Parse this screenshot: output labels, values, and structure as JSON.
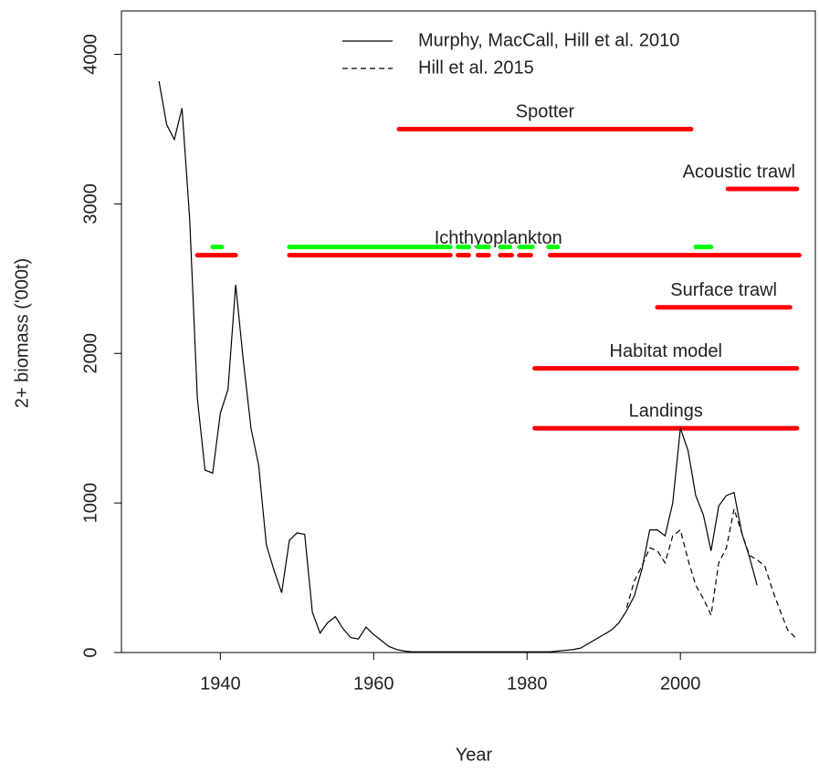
{
  "chart_data": {
    "type": "line",
    "xlabel": "Year",
    "ylabel": "2+ biomass ('000t)",
    "xlim": [
      1927.1,
      2017.6
    ],
    "ylim": [
      0,
      4290
    ],
    "xticks": [
      1940,
      1960,
      1980,
      2000
    ],
    "yticks": [
      0,
      1000,
      2000,
      3000,
      4000
    ],
    "legend": "top",
    "series": [
      {
        "name": "Murphy, MacCall, Hill et al. 2010",
        "color": "#000000",
        "dash": "none",
        "x": [
          1932,
          1933,
          1934,
          1935,
          1936,
          1937,
          1938,
          1939,
          1940,
          1941,
          1942,
          1943,
          1944,
          1945,
          1946,
          1947,
          1948,
          1949,
          1950,
          1951,
          1952,
          1953,
          1954,
          1955,
          1956,
          1957,
          1958,
          1959,
          1960,
          1961,
          1962,
          1963,
          1964,
          1965,
          1966,
          1967,
          1968,
          1969,
          1970,
          1971,
          1972,
          1973,
          1974,
          1975,
          1976,
          1977,
          1978,
          1979,
          1980,
          1981,
          1982,
          1983,
          1984,
          1985,
          1986,
          1987,
          1988,
          1989,
          1990,
          1991,
          1992,
          1993,
          1994,
          1995,
          1996,
          1997,
          1998,
          1999,
          2000,
          2001,
          2002,
          2003,
          2004,
          2005,
          2006,
          2007,
          2008,
          2009,
          2010
        ],
        "values": [
          3820,
          3530,
          3430,
          3640,
          2900,
          1700,
          1220,
          1200,
          1600,
          1760,
          2460,
          1950,
          1500,
          1250,
          720,
          550,
          400,
          750,
          800,
          790,
          270,
          130,
          200,
          240,
          160,
          100,
          90,
          170,
          120,
          80,
          40,
          20,
          10,
          5,
          5,
          5,
          5,
          5,
          5,
          5,
          5,
          5,
          5,
          5,
          5,
          5,
          5,
          5,
          5,
          5,
          5,
          5,
          10,
          15,
          20,
          30,
          60,
          90,
          120,
          150,
          200,
          280,
          380,
          560,
          820,
          820,
          780,
          1000,
          1500,
          1350,
          1050,
          920,
          680,
          980,
          1050,
          1070,
          800,
          640,
          450
        ]
      },
      {
        "name": "Hill et al. 2015",
        "color": "#000000",
        "dash": "6,4",
        "x": [
          1993,
          1994,
          1995,
          1996,
          1997,
          1998,
          1999,
          2000,
          2001,
          2002,
          2003,
          2004,
          2005,
          2006,
          2007,
          2008,
          2009,
          2010,
          2011,
          2012,
          2013,
          2014,
          2015
        ],
        "values": [
          300,
          480,
          580,
          700,
          680,
          600,
          780,
          820,
          620,
          450,
          360,
          250,
          600,
          700,
          960,
          800,
          650,
          620,
          580,
          420,
          280,
          150,
          100
        ]
      }
    ],
    "segments": [
      {
        "label": "Spotter",
        "color": "#ff0000",
        "y": 3500,
        "spans": [
          [
            1963.3,
            2001.4
          ]
        ]
      },
      {
        "label": "Acoustic trawl",
        "color": "#ff0000",
        "y": 3100,
        "spans": [
          [
            2006.2,
            2015.2
          ]
        ]
      },
      {
        "label": "Ichthyoplankton",
        "color": "#ff0000",
        "y": 2657,
        "spans": [
          [
            1937,
            1942
          ],
          [
            1949,
            1970
          ],
          [
            1971,
            1972.4
          ],
          [
            1973.6,
            1975
          ],
          [
            1976.5,
            1978
          ],
          [
            1979,
            1980.5
          ],
          [
            1983,
            2015.5
          ]
        ]
      },
      {
        "color": "#00ff00",
        "y": 2712,
        "spans": [
          [
            1939,
            1940.2
          ],
          [
            1949,
            1970
          ],
          [
            1971,
            1972.4
          ],
          [
            1973.6,
            1975
          ],
          [
            1976.5,
            1977.8
          ],
          [
            1979,
            1980.7
          ],
          [
            1982.8,
            1984
          ],
          [
            2002,
            2004
          ]
        ]
      },
      {
        "label": "Surface trawl",
        "color": "#ff0000",
        "y": 2308,
        "spans": [
          [
            1997,
            2014.3
          ]
        ]
      },
      {
        "label": "Habitat model",
        "color": "#ff0000",
        "y": 1900,
        "spans": [
          [
            1981,
            2015.2
          ]
        ]
      },
      {
        "label": "Landings",
        "color": "#ff0000",
        "y": 1500,
        "spans": [
          [
            1981,
            2015.2
          ]
        ]
      }
    ]
  }
}
